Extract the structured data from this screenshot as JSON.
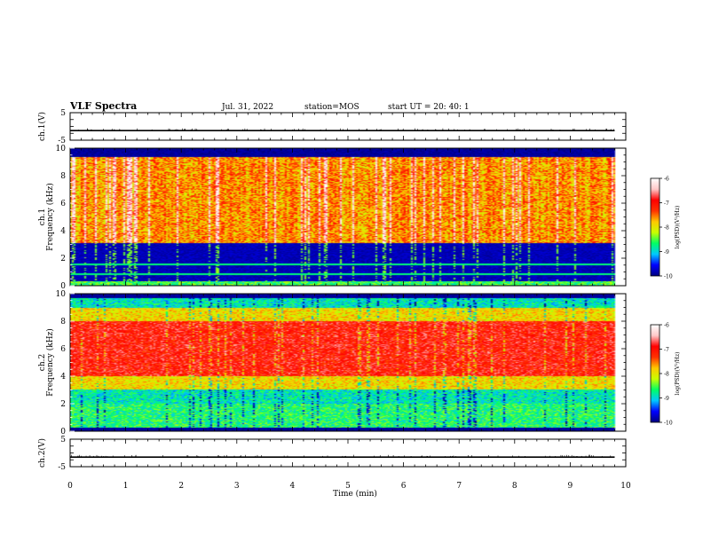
{
  "header": {
    "title": "VLF Spectra",
    "date": "Jul. 31, 2022",
    "station": "station=MOS",
    "start": "start UT =  20: 40: 1"
  },
  "colors": {
    "spectrogram_scale": [
      "#00007f",
      "#0000ff",
      "#00c8ff",
      "#00ff64",
      "#c8ff00",
      "#ffc800",
      "#ff3200",
      "#ff0000",
      "#ffc8c8",
      "#ffffff"
    ]
  },
  "chart_data": [
    {
      "type": "line",
      "ylabel": "ch.1(V)",
      "yticks": [
        "5",
        "-5"
      ],
      "ylim": [
        -5,
        5
      ],
      "xlim": [
        0,
        10
      ],
      "series": [
        {
          "x": [
            0,
            9.8
          ],
          "values": [
            -1.5,
            -1.5
          ]
        }
      ]
    },
    {
      "type": "heatmap",
      "ylabel": [
        "ch.1",
        "Frequency (kHz)"
      ],
      "yticks": [
        "0",
        "2",
        "4",
        "6",
        "8",
        "10"
      ],
      "ylim": [
        0,
        10
      ],
      "xlim": [
        0,
        10
      ],
      "data_xmax": 9.8,
      "colorbar": {
        "label": "log(PSD)(V²/Hz)",
        "ticks": [
          "-6",
          "-7",
          "-8",
          "-9",
          "-10"
        ],
        "range": [
          -10,
          -6
        ]
      }
    },
    {
      "type": "heatmap",
      "ylabel": [
        "ch.2",
        "Frequency (kHz)"
      ],
      "yticks": [
        "0",
        "2",
        "4",
        "6",
        "8",
        "10"
      ],
      "ylim": [
        0,
        10
      ],
      "xlim": [
        0,
        10
      ],
      "data_xmax": 9.8,
      "colorbar": {
        "label": "log(PSD)(V²/Hz)",
        "ticks": [
          "-6",
          "-7",
          "-8",
          "-9",
          "-10"
        ],
        "range": [
          -10,
          -6
        ]
      }
    },
    {
      "type": "line",
      "ylabel": "ch.2(V)",
      "yticks": [
        "5",
        "-5"
      ],
      "ylim": [
        -5,
        5
      ],
      "xlim": [
        0,
        10
      ],
      "xlabel": "Time (min)",
      "xticks": [
        "0",
        "1",
        "2",
        "3",
        "4",
        "5",
        "6",
        "7",
        "8",
        "9",
        "10"
      ],
      "series": [
        {
          "x": [
            0,
            9.8
          ],
          "values": [
            -1.5,
            -1.5
          ]
        }
      ]
    }
  ]
}
